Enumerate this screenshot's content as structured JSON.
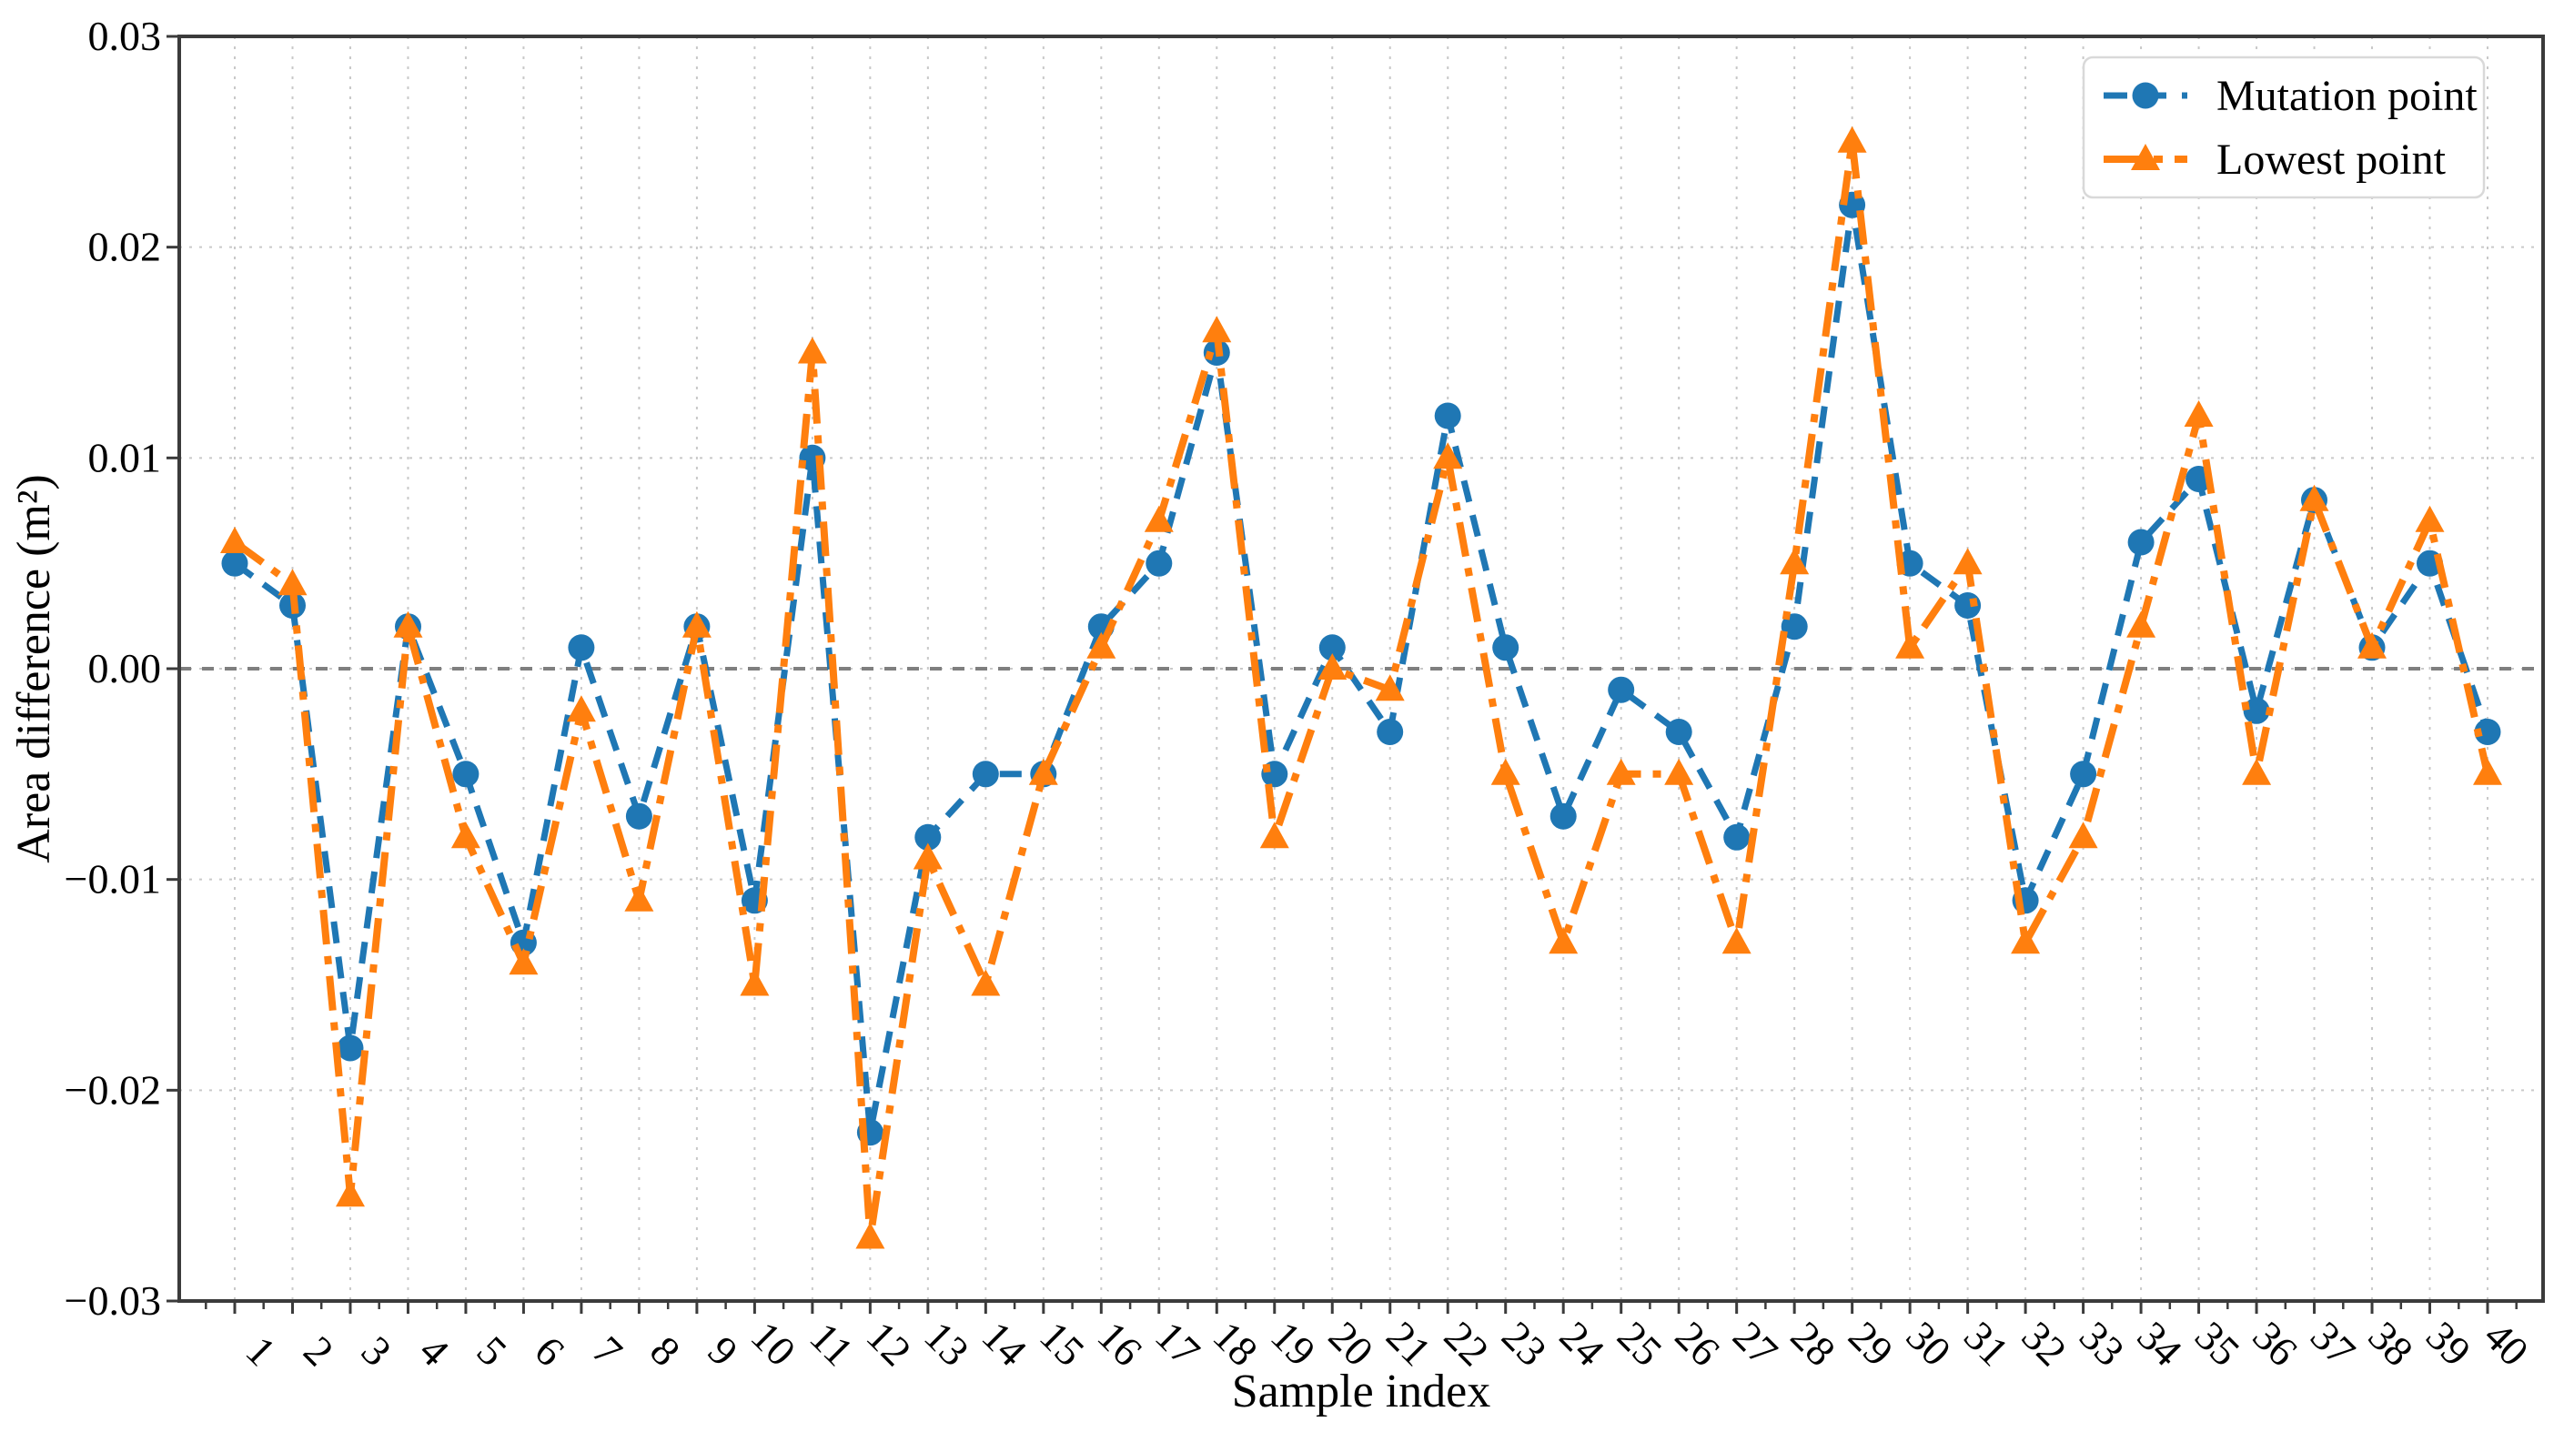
{
  "colors": {
    "background": "#ffffff",
    "axis": "#3b3b3b",
    "grid": "#c9c9c9",
    "zero_line": "#7f7f7f",
    "legend_border": "#d9d9d9",
    "text": "#000000",
    "series_blue": "#1f77b4",
    "series_orange": "#ff7f0e"
  },
  "chart_data": {
    "type": "line",
    "title": "",
    "xlabel": "Sample index",
    "ylabel": "Area difference (m²)",
    "xlim": [
      0.04,
      41.0
    ],
    "ylim": [
      -0.03,
      0.03
    ],
    "grid": "dotted",
    "legend_position": "top-right",
    "zero_line": {
      "value": 0,
      "style": "dashed",
      "color": "#7f7f7f"
    },
    "x": [
      1,
      2,
      3,
      4,
      5,
      6,
      7,
      8,
      9,
      10,
      11,
      12,
      13,
      14,
      15,
      16,
      17,
      18,
      19,
      20,
      21,
      22,
      23,
      24,
      25,
      26,
      27,
      28,
      29,
      30,
      31,
      32,
      33,
      34,
      35,
      36,
      37,
      38,
      39,
      40
    ],
    "xtick_labels": [
      "1",
      "2",
      "3",
      "4",
      "5",
      "6",
      "7",
      "8",
      "9",
      "10",
      "11",
      "12",
      "13",
      "14",
      "15",
      "16",
      "17",
      "18",
      "19",
      "20",
      "21",
      "22",
      "23",
      "24",
      "25",
      "26",
      "27",
      "28",
      "29",
      "30",
      "31",
      "32",
      "33",
      "34",
      "35",
      "36",
      "37",
      "38",
      "39",
      "40"
    ],
    "ytick_values": [
      0.03,
      0.02,
      0.01,
      0,
      -0.01,
      -0.02,
      -0.03
    ],
    "ytick_labels": [
      "0.03",
      "0.02",
      "0.01",
      "0.00",
      "−0.01",
      "−0.02",
      "−0.03"
    ],
    "series": [
      {
        "name": "Mutation point",
        "color": "#1f77b4",
        "marker": "circle",
        "linestyle": "dashed",
        "values": [
          0.005,
          0.003,
          -0.018,
          0.002,
          -0.005,
          -0.013,
          0.001,
          -0.007,
          0.002,
          -0.011,
          0.01,
          -0.022,
          -0.008,
          -0.005,
          -0.005,
          0.002,
          0.005,
          0.015,
          -0.005,
          0.001,
          -0.003,
          0.012,
          0.001,
          -0.007,
          -0.001,
          -0.003,
          -0.008,
          0.002,
          0.022,
          0.005,
          0.003,
          -0.011,
          -0.005,
          0.006,
          0.009,
          -0.002,
          0.008,
          0.001,
          0.005,
          -0.003
        ]
      },
      {
        "name": "Lowest point",
        "color": "#ff7f0e",
        "marker": "triangle-up",
        "linestyle": "dashdot",
        "values": [
          0.006,
          0.004,
          -0.025,
          0.002,
          -0.008,
          -0.014,
          -0.002,
          -0.011,
          0.002,
          -0.015,
          0.015,
          -0.027,
          -0.009,
          -0.015,
          -0.005,
          0.001,
          0.007,
          0.016,
          -0.008,
          0.0,
          -0.001,
          0.01,
          -0.005,
          -0.013,
          -0.005,
          -0.005,
          -0.013,
          0.005,
          0.025,
          0.001,
          0.005,
          -0.013,
          -0.008,
          0.002,
          0.012,
          -0.005,
          0.008,
          0.001,
          0.007,
          -0.005
        ]
      }
    ]
  }
}
